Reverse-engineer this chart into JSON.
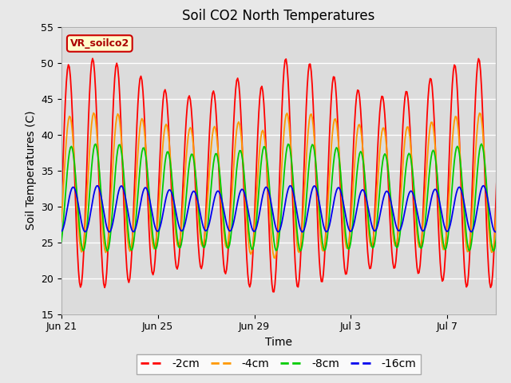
{
  "title": "Soil CO2 North Temperatures",
  "xlabel": "Time",
  "ylabel": "Soil Temperatures (C)",
  "ylim": [
    15,
    55
  ],
  "xtick_labels": [
    "Jun 21",
    "Jun 25",
    "Jun 29",
    "Jul 3",
    "Jul 7"
  ],
  "xtick_positions": [
    0,
    4,
    8,
    12,
    16
  ],
  "series": [
    {
      "label": "-2cm",
      "color": "#ff0000"
    },
    {
      "label": "-4cm",
      "color": "#ff9900"
    },
    {
      "label": "-8cm",
      "color": "#00cc00"
    },
    {
      "label": "-16cm",
      "color": "#0000ee"
    }
  ],
  "annotation_text": "VR_soilco2",
  "annotation_bg": "#ffffcc",
  "annotation_border": "#cc0000",
  "plot_bg_color": "#dcdcdc",
  "fig_bg_color": "#e8e8e8"
}
